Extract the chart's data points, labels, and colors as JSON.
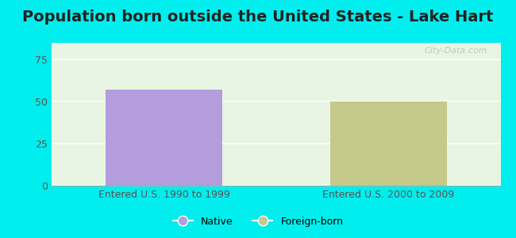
{
  "title": "Population born outside the United States - Lake Hart",
  "background_color": "#00EEEE",
  "plot_bg_color": "#e8f5e2",
  "categories": [
    "Entered U.S. 1990 to 1999",
    "Entered U.S. 2000 to 2009"
  ],
  "native_values": [
    57,
    0
  ],
  "foreign_values": [
    0,
    50
  ],
  "native_color": "#b39ddb",
  "foreign_color": "#c5c98a",
  "ylim": [
    0,
    85
  ],
  "yticks": [
    0,
    25,
    50,
    75
  ],
  "bar_width": 0.52,
  "legend_native": "Native",
  "legend_foreign": "Foreign-born",
  "watermark": "City-Data.com",
  "grid_color": "#ffffff",
  "ref_line_color": "#f48fb1",
  "title_fontsize": 14,
  "axis_label_fontsize": 9,
  "tick_fontsize": 9
}
